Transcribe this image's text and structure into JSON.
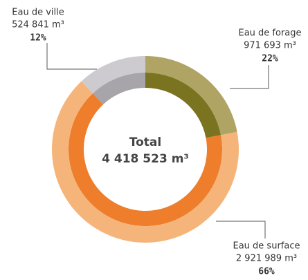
{
  "chart_data": {
    "type": "donut",
    "categories": [
      "Eau de forage",
      "Eau de surface",
      "Eau de ville"
    ],
    "values": [
      22,
      66,
      12
    ],
    "value_labels": [
      "22%",
      "66%",
      "12%"
    ],
    "volumes": [
      971693,
      2921989,
      524841
    ],
    "volume_labels": [
      "971 693 m³",
      "2 921 989 m³",
      "524 841 m³"
    ],
    "outer_colors": [
      "#b0a464",
      "#f5b57a",
      "#cdcbd0"
    ],
    "inner_colors": [
      "#7a7320",
      "#ee7d2c",
      "#a7a5aa"
    ],
    "total_title": "Total",
    "total": 4418523,
    "total_label": "4 418 523 m³"
  }
}
